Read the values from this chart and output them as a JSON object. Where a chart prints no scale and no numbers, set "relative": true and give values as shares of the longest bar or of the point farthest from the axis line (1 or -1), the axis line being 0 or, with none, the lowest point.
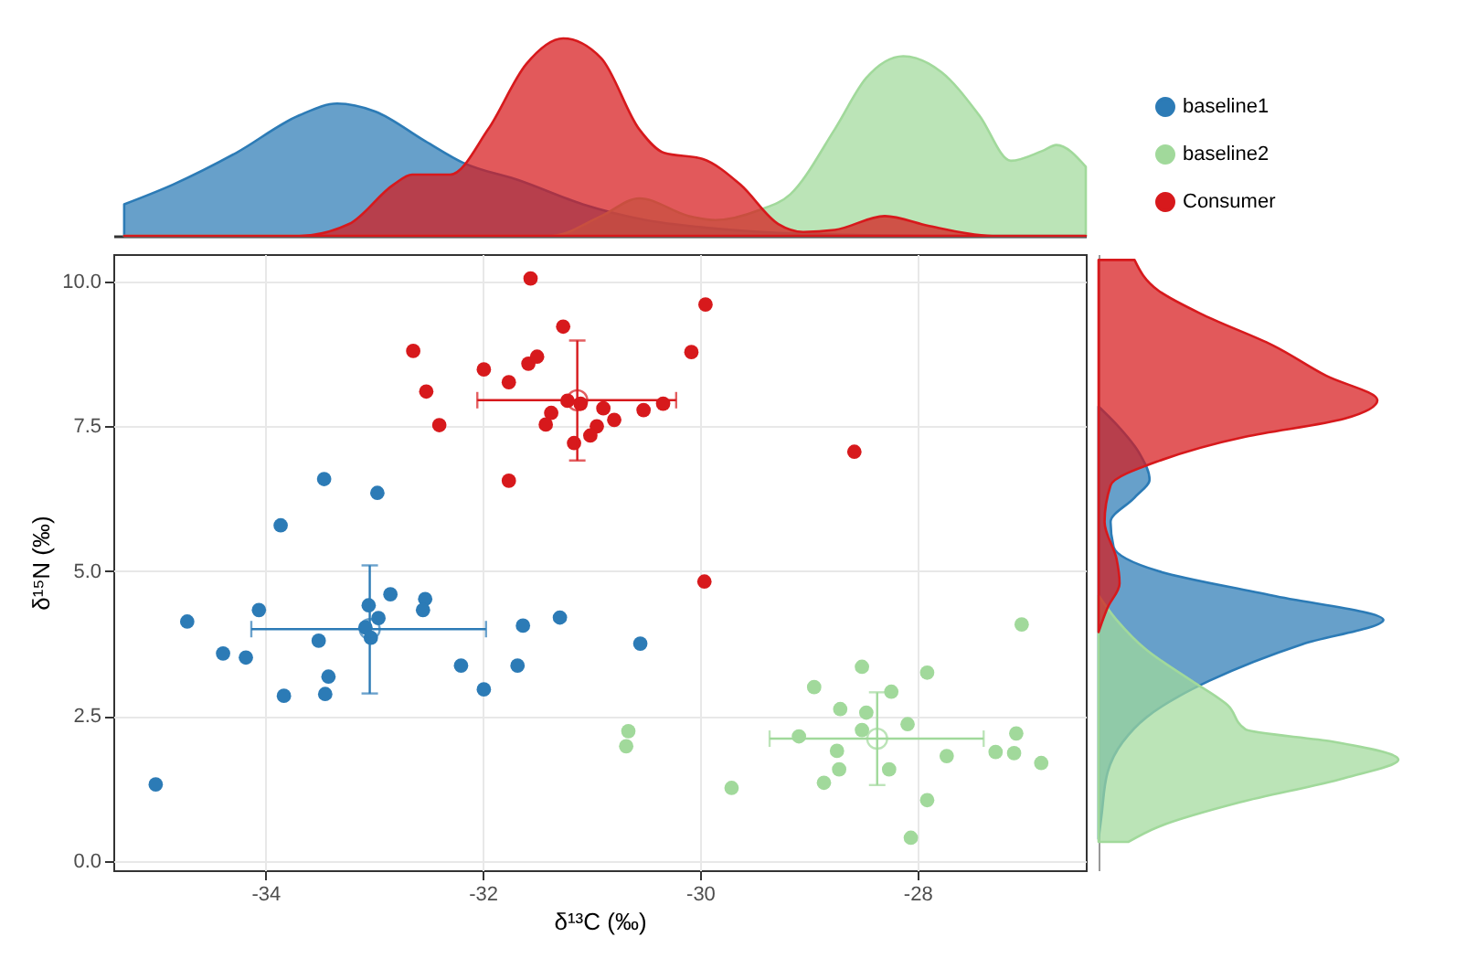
{
  "chart_data": [
    {
      "type": "area",
      "relative": true,
      "tick_labels": false,
      "xlim": [
        -35.4,
        -26.45
      ],
      "series": [
        {
          "color": "#2c7bb6",
          "x": [
            -35.3,
            -34.85,
            -34.27,
            -33.69,
            -33.34,
            -32.99,
            -32.53,
            -32.18,
            -31.66,
            -31.08,
            -30.5,
            -29.92,
            -29.05,
            -27.89,
            -26.45
          ],
          "values": [
            0.16,
            0.26,
            0.42,
            0.61,
            0.67,
            0.63,
            0.48,
            0.37,
            0.28,
            0.16,
            0.08,
            0.04,
            0.01,
            0,
            0
          ]
        },
        {
          "color": "#a1d99b",
          "x": [
            -35.3,
            -31.37,
            -30.91,
            -30.56,
            -30.1,
            -29.86,
            -29.46,
            -29.17,
            -28.76,
            -28.47,
            -28.13,
            -27.78,
            -27.43,
            -27.14,
            -26.85,
            -26.72,
            -26.45
          ],
          "values": [
            0,
            0,
            0.1,
            0.19,
            0.1,
            0.08,
            0.13,
            0.21,
            0.54,
            0.8,
            0.91,
            0.83,
            0.61,
            0.38,
            0.43,
            0.46,
            0.35
          ]
        },
        {
          "color": "#d7191c",
          "x": [
            -35.3,
            -33.69,
            -33.23,
            -32.82,
            -32.65,
            -32.3,
            -31.95,
            -31.6,
            -31.26,
            -30.91,
            -30.56,
            -30.33,
            -29.98,
            -29.63,
            -29.28,
            -29.05,
            -28.76,
            -28.3,
            -27.89,
            -27.31,
            -26.45
          ],
          "values": [
            0,
            0,
            0.06,
            0.26,
            0.31,
            0.31,
            0.54,
            0.87,
            1,
            0.9,
            0.54,
            0.42,
            0.39,
            0.26,
            0.06,
            0.02,
            0.03,
            0.1,
            0.05,
            0,
            0
          ]
        }
      ]
    },
    {
      "type": "scatter",
      "xlabel": "δ¹³C (‰)",
      "ylabel": "δ¹⁵N (‰)",
      "xlim": [
        -35.4,
        -26.45
      ],
      "ylim": [
        -0.16,
        10.47
      ],
      "xticks": [
        -34,
        -32,
        -30,
        -28
      ],
      "yticks": [
        {
          "value": 0,
          "label": "0.0"
        },
        {
          "value": 2.5,
          "label": "2.5"
        },
        {
          "value": 5,
          "label": "5.0"
        },
        {
          "value": 7.5,
          "label": "7.5"
        },
        {
          "value": 10,
          "label": "10.0"
        }
      ],
      "grid": true,
      "legend": "top right",
      "marker": "circle",
      "series": [
        {
          "name": "baseline1",
          "color": "#2c7bb6",
          "x": [
            -33.86,
            -35.01,
            -34.72,
            -34.39,
            -34.18,
            -34.06,
            -33.83,
            -33.51,
            -33.42,
            -33.45,
            -33.05,
            -32.96,
            -33.08,
            -33.03,
            -32.85,
            -32.53,
            -32.55,
            -32.2,
            -31.99,
            -31.68,
            -31.63,
            -31.29,
            -33.46,
            -32.97,
            -30.55
          ],
          "values": [
            5.79,
            1.32,
            4.13,
            3.58,
            3.51,
            4.33,
            2.85,
            3.8,
            3.18,
            2.88,
            4.41,
            4.19,
            4.03,
            3.85,
            4.6,
            4.52,
            4.33,
            3.37,
            2.96,
            3.37,
            4.06,
            4.2,
            6.59,
            6.35,
            3.75
          ]
        },
        {
          "name": "baseline2",
          "color": "#a1d99b",
          "x": [
            -30.66,
            -30.68,
            -29.71,
            -29.09,
            -28.95,
            -28.86,
            -28.74,
            -28.72,
            -28.71,
            -28.51,
            -28.51,
            -28.47,
            -28.24,
            -28.26,
            -28.09,
            -27.91,
            -27.91,
            -28.06,
            -27.73,
            -27.28,
            -27.11,
            -27.09,
            -27.04,
            -26.86
          ],
          "values": [
            2.24,
            1.98,
            1.26,
            2.15,
            3,
            1.35,
            1.9,
            1.58,
            2.62,
            3.35,
            2.26,
            2.56,
            2.92,
            1.58,
            2.36,
            3.25,
            1.05,
            0.4,
            1.81,
            1.88,
            1.86,
            2.2,
            4.08,
            1.69
          ]
        },
        {
          "name": "Consumer",
          "color": "#d7191c",
          "x": [
            -31.56,
            -31.26,
            -32.64,
            -31.99,
            -31.76,
            -31.58,
            -31.5,
            -32.52,
            -32.4,
            -31.76,
            -31.22,
            -31.1,
            -31.37,
            -31.42,
            -30.89,
            -30.79,
            -30.95,
            -31.01,
            -31.16,
            -29.95,
            -30.08,
            -30.52,
            -30.34,
            -28.58,
            -29.96
          ],
          "values": [
            10.05,
            9.22,
            8.8,
            8.48,
            8.26,
            8.58,
            8.7,
            8.1,
            7.52,
            6.56,
            7.94,
            7.89,
            7.73,
            7.53,
            7.81,
            7.61,
            7.5,
            7.34,
            7.21,
            9.6,
            8.78,
            7.78,
            7.89,
            7.06,
            4.82
          ]
        },
        {
          "color": "#2c7bb6",
          "x": [
            -33.04
          ],
          "values": [
            4
          ],
          "errors": [
            [
              2.89,
              5.1
            ]
          ],
          "xerrors": [
            [
              -34.13,
              -31.97
            ]
          ]
        },
        {
          "color": "#a1d99b",
          "x": [
            -28.37
          ],
          "values": [
            2.11
          ],
          "errors": [
            [
              1.31,
              2.91
            ]
          ],
          "xerrors": [
            [
              -29.36,
              -27.39
            ]
          ]
        },
        {
          "color": "#d7191c",
          "x": [
            -31.13
          ],
          "values": [
            7.95
          ],
          "errors": [
            [
              6.91,
              8.98
            ]
          ],
          "xerrors": [
            [
              -32.05,
              -30.22
            ]
          ]
        }
      ]
    },
    {
      "type": "area",
      "orientation": "horizontal",
      "relative": true,
      "tick_labels": false,
      "ylim": [
        -0.16,
        10.47
      ],
      "series": [
        {
          "color": "#2c7bb6",
          "x": [
            7.84,
            7.53,
            7,
            6.58,
            6.27,
            5.85,
            5.42,
            5,
            4.58,
            4.16,
            3.74,
            3.11,
            2.48,
            2.05,
            1.53,
            0.79,
            0.38
          ],
          "values": [
            0,
            0.06,
            0.14,
            0.17,
            0.12,
            0.04,
            0.05,
            0.2,
            0.58,
            0.95,
            0.68,
            0.37,
            0.16,
            0.08,
            0.03,
            0.01,
            0
          ]
        },
        {
          "color": "#a1d99b",
          "x": [
            4.58,
            4.16,
            3.64,
            3.11,
            2.69,
            2.27,
            2.06,
            1.75,
            1.43,
            1.01,
            0.59,
            0.33
          ],
          "values": [
            0,
            0.06,
            0.16,
            0.31,
            0.43,
            0.49,
            0.78,
            1,
            0.82,
            0.47,
            0.2,
            0.1
          ]
        },
        {
          "color": "#d7191c",
          "x": [
            10.37,
            9.84,
            9.42,
            8.9,
            8.37,
            7.95,
            7.63,
            7.32,
            6.9,
            6.48,
            5.85,
            5.21,
            4.79,
            4.37,
            3.95
          ],
          "values": [
            0.12,
            0.2,
            0.35,
            0.58,
            0.76,
            0.93,
            0.82,
            0.49,
            0.2,
            0.04,
            0.02,
            0.06,
            0.07,
            0.03,
            0
          ]
        }
      ]
    }
  ]
}
